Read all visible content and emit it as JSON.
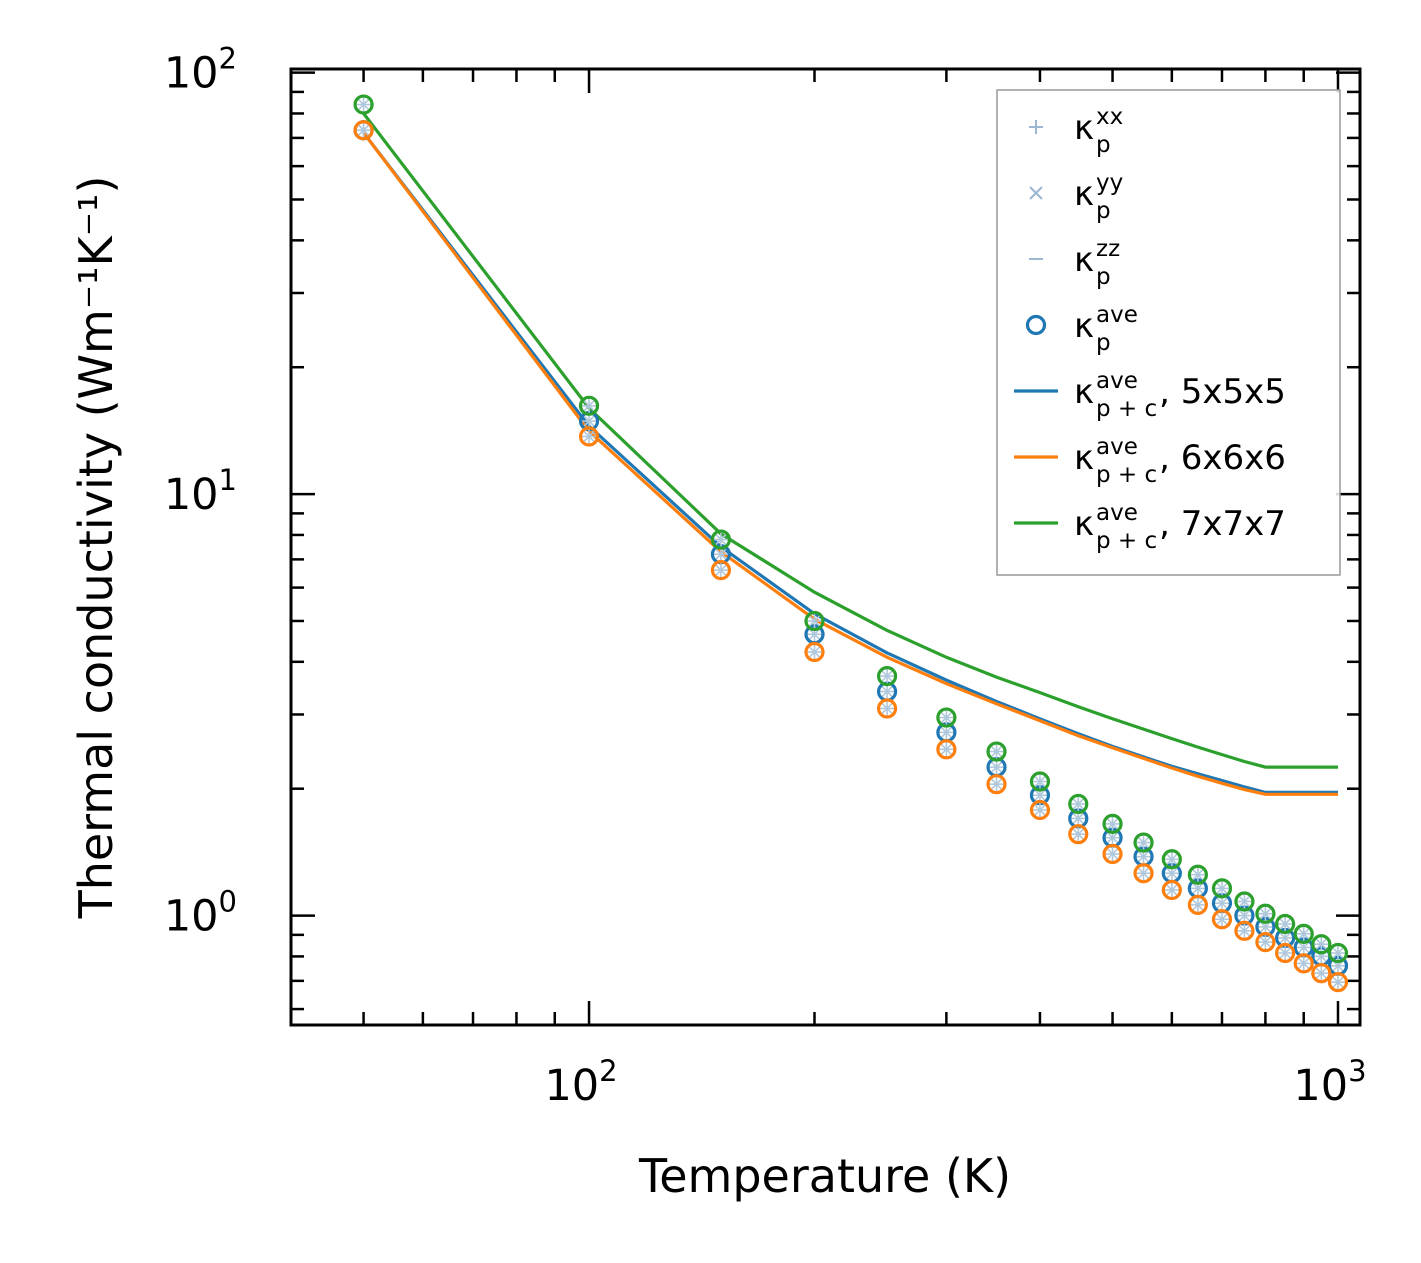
{
  "chart_data": {
    "type": "scatter",
    "scale": {
      "x": "log",
      "y": "log"
    },
    "xlabel": "Temperature (K)",
    "ylabel": "Thermal conductivity (Wm⁻¹K⁻¹)",
    "xlim": [
      40,
      1070
    ],
    "ylim": [
      0.55,
      102
    ],
    "x_ticks": [
      {
        "base": "10",
        "exp": "2",
        "value": 100
      },
      {
        "base": "10",
        "exp": "3",
        "value": 1000
      }
    ],
    "y_ticks": [
      {
        "base": "10",
        "exp": "0",
        "value": 1
      },
      {
        "base": "10",
        "exp": "1",
        "value": 10
      },
      {
        "base": "10",
        "exp": "2",
        "value": 100
      }
    ],
    "temperatures": [
      50,
      100,
      150,
      200,
      250,
      300,
      350,
      400,
      450,
      500,
      550,
      600,
      650,
      700,
      750,
      800,
      850,
      900,
      950,
      1000
    ],
    "series": [
      {
        "name": "5x5x5",
        "color": "#1f77b4",
        "points": [
          73,
          14.9,
          7.2,
          4.65,
          3.4,
          2.72,
          2.25,
          1.93,
          1.7,
          1.53,
          1.38,
          1.26,
          1.16,
          1.07,
          1.0,
          0.94,
          0.885,
          0.84,
          0.8,
          0.76
        ],
        "line": [
          72,
          14.5,
          7.5,
          5.2,
          4.2,
          3.62,
          3.22,
          2.93,
          2.7,
          2.52,
          2.38,
          2.26,
          2.17,
          2.09,
          2.02,
          1.96,
          1.96
        ]
      },
      {
        "name": "6x6x6",
        "color": "#ff7f0e",
        "points": [
          73,
          13.7,
          6.6,
          4.22,
          3.1,
          2.48,
          2.05,
          1.78,
          1.56,
          1.4,
          1.26,
          1.15,
          1.06,
          0.98,
          0.92,
          0.865,
          0.815,
          0.77,
          0.73,
          0.695
        ],
        "line": [
          72,
          14.1,
          7.3,
          5.05,
          4.1,
          3.55,
          3.18,
          2.9,
          2.67,
          2.5,
          2.36,
          2.24,
          2.14,
          2.06,
          1.99,
          1.94,
          1.94
        ]
      },
      {
        "name": "7x7x7",
        "color": "#2ca02c",
        "points": [
          84,
          16.2,
          7.8,
          5.0,
          3.7,
          2.95,
          2.45,
          2.08,
          1.84,
          1.65,
          1.49,
          1.36,
          1.25,
          1.16,
          1.08,
          1.01,
          0.955,
          0.905,
          0.855,
          0.815
        ],
        "line": [
          80,
          16.0,
          8.05,
          5.85,
          4.75,
          4.1,
          3.68,
          3.38,
          3.13,
          2.93,
          2.77,
          2.63,
          2.51,
          2.41,
          2.32,
          2.25,
          2.25
        ]
      }
    ],
    "line_x": [
      50,
      100,
      150,
      200,
      250,
      300,
      350,
      400,
      450,
      500,
      550,
      600,
      650,
      700,
      750,
      800,
      1000
    ],
    "legend": {
      "placement": "top-right",
      "entries": [
        {
          "symbol": "plus",
          "color": "#9bb8d4",
          "sym": "κ",
          "sub": "p",
          "sup": "xx",
          "suffix": ""
        },
        {
          "symbol": "cross",
          "color": "#9bb8d4",
          "sym": "κ",
          "sub": "p",
          "sup": "yy",
          "suffix": ""
        },
        {
          "symbol": "dash",
          "color": "#9bb8d4",
          "sym": "κ",
          "sub": "p",
          "sup": "zz",
          "suffix": ""
        },
        {
          "symbol": "circle",
          "color": "#1f77b4",
          "sym": "κ",
          "sub": "p",
          "sup": "ave",
          "suffix": ""
        },
        {
          "symbol": "line",
          "color": "#1f77b4",
          "sym": "κ",
          "sub": "p + c",
          "sup": "ave",
          "suffix": ", 5x5x5"
        },
        {
          "symbol": "line",
          "color": "#ff7f0e",
          "sym": "κ",
          "sub": "p + c",
          "sup": "ave",
          "suffix": ", 6x6x6"
        },
        {
          "symbol": "line",
          "color": "#2ca02c",
          "sym": "κ",
          "sub": "p + c",
          "sup": "ave",
          "suffix": ", 7x7x7"
        }
      ]
    }
  }
}
